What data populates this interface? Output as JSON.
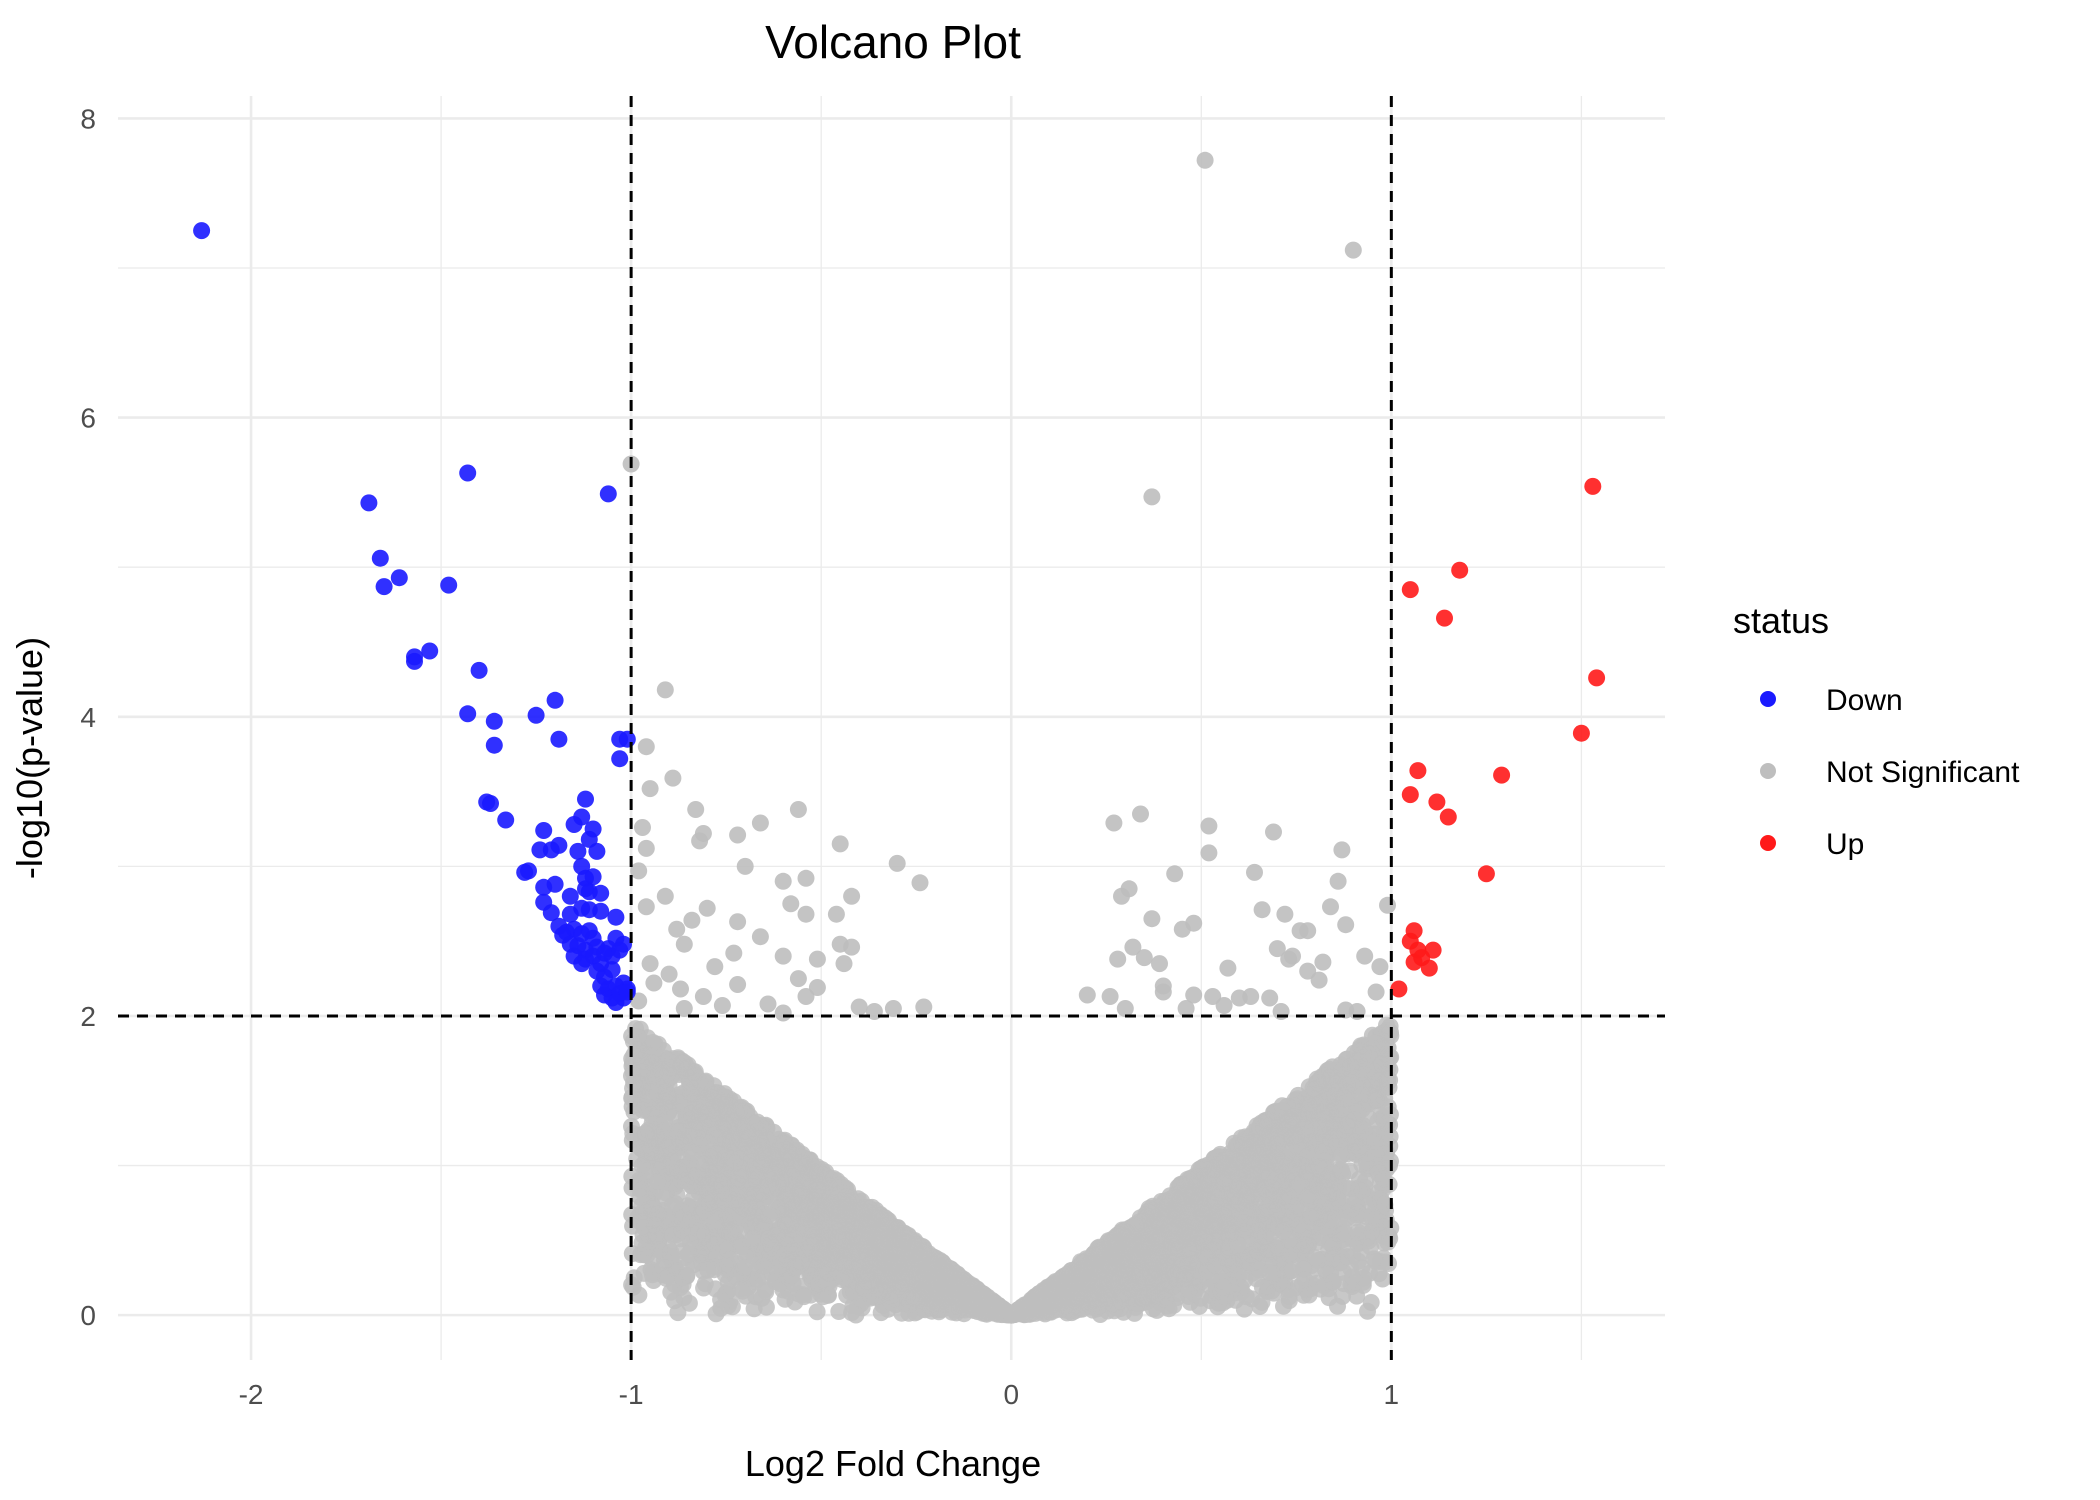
{
  "chart_data": {
    "type": "scatter",
    "title": "Volcano Plot",
    "xlabel": "Log2 Fold Change",
    "ylabel": "-log10(p-value)",
    "xlim": [
      -2.35,
      1.72
    ],
    "ylim": [
      -0.3,
      8.15
    ],
    "x_ticks": [
      -2,
      -1,
      0,
      1
    ],
    "x_tick_labels": [
      "-2",
      "-1",
      "0",
      "1"
    ],
    "y_ticks": [
      0,
      2,
      4,
      6,
      8
    ],
    "y_tick_labels": [
      "0",
      "2",
      "4",
      "6",
      "8"
    ],
    "grid": true,
    "thresholds": {
      "x": [
        -1,
        1
      ],
      "y": 2
    },
    "legend": {
      "title": "status",
      "position": "right",
      "entries": [
        {
          "label": "Down",
          "color": "#1a1aff"
        },
        {
          "label": "Not Significant",
          "color": "#bebebe"
        },
        {
          "label": "Up",
          "color": "#ff1a1a"
        }
      ]
    },
    "series": [
      {
        "name": "Down",
        "color": "#1a1aff",
        "points": [
          [
            -2.13,
            7.25
          ],
          [
            -1.69,
            5.43
          ],
          [
            -1.66,
            5.06
          ],
          [
            -1.65,
            4.87
          ],
          [
            -1.61,
            4.93
          ],
          [
            -1.43,
            5.63
          ],
          [
            -1.48,
            4.88
          ],
          [
            -1.57,
            4.4
          ],
          [
            -1.57,
            4.37
          ],
          [
            -1.53,
            4.44
          ],
          [
            -1.4,
            4.31
          ],
          [
            -1.43,
            4.02
          ],
          [
            -1.36,
            3.97
          ],
          [
            -1.36,
            3.81
          ],
          [
            -1.25,
            4.01
          ],
          [
            -1.2,
            4.11
          ],
          [
            -1.19,
            3.85
          ],
          [
            -1.06,
            5.49
          ],
          [
            -1.03,
            3.85
          ],
          [
            -1.01,
            3.85
          ],
          [
            -1.03,
            3.72
          ],
          [
            -1.38,
            3.43
          ],
          [
            -1.37,
            3.42
          ],
          [
            -1.33,
            3.31
          ],
          [
            -1.12,
            3.45
          ],
          [
            -1.15,
            3.28
          ],
          [
            -1.13,
            3.33
          ],
          [
            -1.1,
            3.25
          ],
          [
            -1.23,
            3.24
          ],
          [
            -1.24,
            3.11
          ],
          [
            -1.21,
            3.11
          ],
          [
            -1.19,
            3.14
          ],
          [
            -1.14,
            3.1
          ],
          [
            -1.11,
            3.18
          ],
          [
            -1.09,
            3.1
          ],
          [
            -1.27,
            2.97
          ],
          [
            -1.28,
            2.96
          ],
          [
            -1.13,
            3.0
          ],
          [
            -1.12,
            2.92
          ],
          [
            -1.1,
            2.93
          ],
          [
            -1.23,
            2.86
          ],
          [
            -1.2,
            2.88
          ],
          [
            -1.12,
            2.85
          ],
          [
            -1.23,
            2.76
          ],
          [
            -1.16,
            2.8
          ],
          [
            -1.11,
            2.83
          ],
          [
            -1.08,
            2.82
          ],
          [
            -1.21,
            2.69
          ],
          [
            -1.16,
            2.68
          ],
          [
            -1.13,
            2.72
          ],
          [
            -1.11,
            2.71
          ],
          [
            -1.08,
            2.7
          ],
          [
            -1.04,
            2.66
          ],
          [
            -1.19,
            2.6
          ],
          [
            -1.17,
            2.56
          ],
          [
            -1.15,
            2.58
          ],
          [
            -1.18,
            2.54
          ],
          [
            -1.13,
            2.55
          ],
          [
            -1.11,
            2.57
          ],
          [
            -1.1,
            2.52
          ],
          [
            -1.16,
            2.48
          ],
          [
            -1.14,
            2.47
          ],
          [
            -1.12,
            2.44
          ],
          [
            -1.09,
            2.46
          ],
          [
            -1.06,
            2.45
          ],
          [
            -1.04,
            2.52
          ],
          [
            -1.02,
            2.48
          ],
          [
            -1.15,
            2.4
          ],
          [
            -1.12,
            2.38
          ],
          [
            -1.1,
            2.4
          ],
          [
            -1.08,
            2.35
          ],
          [
            -1.07,
            2.42
          ],
          [
            -1.05,
            2.4
          ],
          [
            -1.03,
            2.44
          ],
          [
            -1.13,
            2.35
          ],
          [
            -1.09,
            2.3
          ],
          [
            -1.07,
            2.26
          ],
          [
            -1.05,
            2.31
          ],
          [
            -1.08,
            2.2
          ],
          [
            -1.06,
            2.18
          ],
          [
            -1.04,
            2.2
          ],
          [
            -1.02,
            2.22
          ],
          [
            -1.01,
            2.18
          ],
          [
            -1.07,
            2.14
          ],
          [
            -1.05,
            2.12
          ],
          [
            -1.03,
            2.15
          ],
          [
            -1.02,
            2.12
          ],
          [
            -1.04,
            2.09
          ],
          [
            -1.01,
            2.16
          ]
        ]
      },
      {
        "name": "Up",
        "color": "#ff1a1a",
        "points": [
          [
            1.53,
            5.54
          ],
          [
            1.18,
            4.98
          ],
          [
            1.05,
            4.85
          ],
          [
            1.14,
            4.66
          ],
          [
            1.54,
            4.26
          ],
          [
            1.5,
            3.89
          ],
          [
            1.07,
            3.64
          ],
          [
            1.29,
            3.61
          ],
          [
            1.05,
            3.48
          ],
          [
            1.12,
            3.43
          ],
          [
            1.15,
            3.33
          ],
          [
            1.25,
            2.95
          ],
          [
            1.06,
            2.57
          ],
          [
            1.05,
            2.5
          ],
          [
            1.07,
            2.44
          ],
          [
            1.11,
            2.44
          ],
          [
            1.06,
            2.36
          ],
          [
            1.08,
            2.39
          ],
          [
            1.1,
            2.32
          ],
          [
            1.02,
            2.18
          ]
        ]
      },
      {
        "name": "Not Significant",
        "color": "#bebebe",
        "cloud": {
          "count": 5000,
          "x_range": [
            -0.999,
            0.999
          ],
          "max_at_threshold": 2.0
        },
        "points": [
          [
            0.51,
            7.72
          ],
          [
            0.9,
            7.12
          ],
          [
            -1.0,
            5.69
          ],
          [
            0.37,
            5.47
          ],
          [
            -0.91,
            4.18
          ],
          [
            -0.96,
            3.8
          ],
          [
            -0.89,
            3.59
          ],
          [
            -0.95,
            3.52
          ],
          [
            -0.83,
            3.38
          ],
          [
            -0.56,
            3.38
          ],
          [
            -0.66,
            3.29
          ],
          [
            0.27,
            3.29
          ],
          [
            0.34,
            3.35
          ],
          [
            0.52,
            3.27
          ],
          [
            0.69,
            3.23
          ],
          [
            -0.97,
            3.26
          ],
          [
            -0.81,
            3.22
          ],
          [
            -0.72,
            3.21
          ],
          [
            -0.82,
            3.17
          ],
          [
            -0.45,
            3.15
          ],
          [
            0.52,
            3.09
          ],
          [
            0.87,
            3.11
          ],
          [
            -0.96,
            3.12
          ],
          [
            -0.3,
            3.02
          ],
          [
            -0.7,
            3.0
          ],
          [
            -0.98,
            2.97
          ],
          [
            0.43,
            2.95
          ],
          [
            0.64,
            2.96
          ],
          [
            -0.54,
            2.92
          ],
          [
            -0.6,
            2.9
          ],
          [
            -0.24,
            2.89
          ],
          [
            0.31,
            2.85
          ],
          [
            0.86,
            2.9
          ],
          [
            -0.91,
            2.8
          ],
          [
            -0.42,
            2.8
          ],
          [
            -0.58,
            2.75
          ],
          [
            0.29,
            2.8
          ],
          [
            0.84,
            2.73
          ],
          [
            0.99,
            2.74
          ],
          [
            -0.8,
            2.72
          ],
          [
            -0.96,
            2.73
          ],
          [
            -0.84,
            2.64
          ],
          [
            -0.54,
            2.68
          ],
          [
            -0.46,
            2.68
          ],
          [
            0.37,
            2.65
          ],
          [
            0.48,
            2.62
          ],
          [
            0.66,
            2.71
          ],
          [
            0.72,
            2.68
          ],
          [
            -0.72,
            2.63
          ],
          [
            -0.88,
            2.58
          ],
          [
            0.45,
            2.58
          ],
          [
            0.76,
            2.57
          ],
          [
            0.78,
            2.57
          ],
          [
            0.88,
            2.61
          ],
          [
            -0.66,
            2.53
          ],
          [
            -0.86,
            2.48
          ],
          [
            -0.45,
            2.48
          ],
          [
            -0.42,
            2.46
          ],
          [
            0.32,
            2.46
          ],
          [
            0.7,
            2.45
          ],
          [
            0.74,
            2.4
          ],
          [
            -0.73,
            2.42
          ],
          [
            -0.6,
            2.4
          ],
          [
            -0.51,
            2.38
          ],
          [
            0.28,
            2.38
          ],
          [
            0.35,
            2.39
          ],
          [
            0.93,
            2.4
          ],
          [
            0.97,
            2.33
          ],
          [
            -0.95,
            2.35
          ],
          [
            -0.78,
            2.33
          ],
          [
            -0.44,
            2.35
          ],
          [
            0.39,
            2.35
          ],
          [
            0.73,
            2.38
          ],
          [
            0.82,
            2.36
          ],
          [
            -0.9,
            2.28
          ],
          [
            -0.56,
            2.25
          ],
          [
            -0.51,
            2.19
          ],
          [
            0.57,
            2.32
          ],
          [
            0.78,
            2.3
          ],
          [
            -0.94,
            2.22
          ],
          [
            -0.72,
            2.21
          ],
          [
            -0.54,
            2.13
          ],
          [
            0.4,
            2.2
          ],
          [
            0.81,
            2.24
          ],
          [
            0.96,
            2.16
          ],
          [
            -0.87,
            2.18
          ],
          [
            -0.81,
            2.13
          ],
          [
            -0.4,
            2.06
          ],
          [
            -0.36,
            2.03
          ],
          [
            0.2,
            2.14
          ],
          [
            0.26,
            2.13
          ],
          [
            0.4,
            2.16
          ],
          [
            0.48,
            2.14
          ],
          [
            0.53,
            2.13
          ],
          [
            0.6,
            2.12
          ],
          [
            0.63,
            2.13
          ],
          [
            0.68,
            2.12
          ],
          [
            -0.31,
            2.05
          ],
          [
            -0.23,
            2.06
          ],
          [
            0.46,
            2.05
          ],
          [
            0.88,
            2.04
          ],
          [
            -0.98,
            2.1
          ],
          [
            -0.64,
            2.08
          ],
          [
            0.3,
            2.05
          ],
          [
            0.56,
            2.07
          ],
          [
            0.71,
            2.03
          ],
          [
            0.91,
            2.03
          ],
          [
            -0.86,
            2.05
          ],
          [
            -0.76,
            2.07
          ],
          [
            -0.6,
            2.02
          ]
        ]
      }
    ]
  }
}
